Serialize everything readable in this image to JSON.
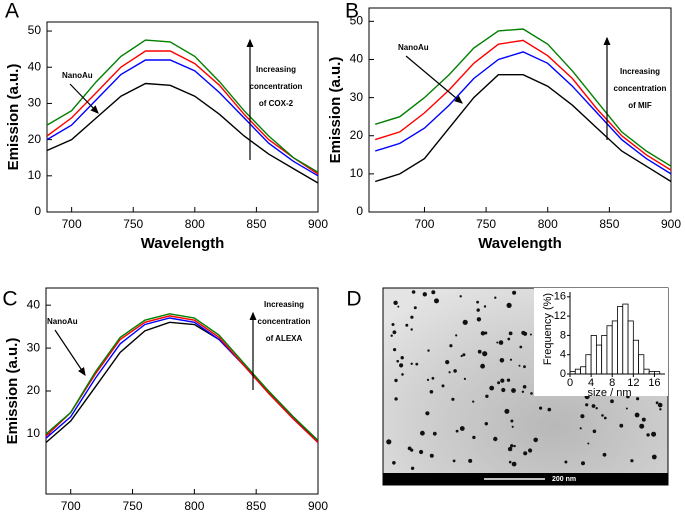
{
  "chart_data": [
    {
      "type": "line",
      "panel_label": "A",
      "xlabel": "Wavelength",
      "ylabel": "Emission (a.u.)",
      "annotation": "NanoAu",
      "annotation_lines": [
        "Increasing",
        "concentration",
        "of COX-2"
      ],
      "x": [
        680,
        700,
        720,
        740,
        760,
        780,
        800,
        820,
        840,
        860,
        880,
        900
      ],
      "xlim": [
        680,
        900
      ],
      "xticks": [
        700,
        750,
        800,
        850,
        900
      ],
      "ylim": [
        0,
        52.5
      ],
      "yticks": [
        0,
        10,
        20,
        30,
        40,
        50
      ],
      "series": [
        {
          "color": "#000000",
          "values": [
            17,
            20,
            26,
            32,
            35.5,
            35,
            32,
            27,
            21,
            16,
            12,
            8
          ]
        },
        {
          "color": "#0000ff",
          "values": [
            20,
            24,
            31,
            38,
            42,
            42,
            39,
            33,
            26,
            19,
            14,
            10
          ]
        },
        {
          "color": "#ff0000",
          "values": [
            21,
            26,
            33,
            40,
            44.5,
            44.5,
            41,
            35,
            27,
            20,
            15,
            10.5
          ]
        },
        {
          "color": "#007f00",
          "values": [
            24,
            28,
            36,
            43,
            47.5,
            47,
            43,
            36,
            28,
            21,
            15,
            11
          ]
        }
      ]
    },
    {
      "type": "line",
      "panel_label": "B",
      "xlabel": "Wavelength",
      "ylabel": "Emission (a.u.)",
      "annotation": "NanoAu",
      "annotation_lines": [
        "Increasing",
        "concentration",
        "of MIF"
      ],
      "x": [
        660,
        680,
        700,
        720,
        740,
        760,
        780,
        800,
        820,
        840,
        860,
        880,
        900
      ],
      "xlim": [
        655,
        900
      ],
      "xticks": [
        700,
        750,
        800,
        850,
        900
      ],
      "ylim": [
        0,
        53.5
      ],
      "yticks": [
        0,
        10,
        20,
        30,
        40,
        50
      ],
      "series": [
        {
          "color": "#000000",
          "values": [
            8,
            10,
            14,
            22,
            30,
            36,
            36,
            33,
            28,
            22,
            16,
            12,
            8
          ]
        },
        {
          "color": "#0000ff",
          "values": [
            16,
            18,
            22,
            28,
            35,
            40,
            42,
            39,
            33,
            26,
            19,
            14,
            10
          ]
        },
        {
          "color": "#ff0000",
          "values": [
            19,
            21,
            26,
            32,
            39,
            44,
            45,
            41,
            35,
            27,
            20,
            15,
            11
          ]
        },
        {
          "color": "#007f00",
          "values": [
            23,
            25,
            30,
            36,
            43,
            47.5,
            48,
            44,
            37,
            29,
            21,
            16,
            12
          ]
        }
      ]
    },
    {
      "type": "line",
      "panel_label": "C",
      "xlabel": "Wavelength",
      "ylabel": "Emission (a.u.)",
      "annotation": "NanoAu",
      "annotation_lines": [
        "Increasing",
        "concentration",
        "of ALEXA"
      ],
      "x": [
        680,
        700,
        720,
        740,
        760,
        780,
        800,
        820,
        840,
        860,
        880,
        900
      ],
      "xlim": [
        680,
        900
      ],
      "xticks": [
        700,
        750,
        800,
        850,
        900
      ],
      "ylim": [
        -4,
        44
      ],
      "yticks": [
        10,
        20,
        30,
        40
      ],
      "series": [
        {
          "color": "#000000",
          "values": [
            8,
            13,
            21,
            29,
            34,
            36,
            35.5,
            32,
            26,
            20,
            14,
            8
          ]
        },
        {
          "color": "#0000ff",
          "values": [
            9,
            14,
            23,
            31,
            35.5,
            37,
            36,
            32,
            26,
            19.5,
            13.5,
            8
          ]
        },
        {
          "color": "#ff0000",
          "values": [
            9.5,
            15,
            24,
            32,
            36,
            37.5,
            36.5,
            32.5,
            26,
            19.5,
            13.5,
            8
          ]
        },
        {
          "color": "#007f00",
          "values": [
            10,
            15,
            24.5,
            32.5,
            36.5,
            38,
            37,
            33,
            26.5,
            20,
            14,
            8.5
          ]
        }
      ]
    },
    {
      "type": "histogram",
      "panel_label": "D",
      "scale_bar": "200 nm",
      "xlabel": "size / nm",
      "ylabel": "Frequency (%)",
      "bins": [
        0,
        1,
        2,
        3,
        4,
        5,
        6,
        7,
        8,
        9,
        10,
        11,
        12,
        13,
        14,
        15,
        16,
        17
      ],
      "values": [
        0.5,
        1,
        1.5,
        4,
        8,
        6,
        8,
        10,
        11,
        14,
        14.5,
        11,
        7,
        4,
        1,
        0.5,
        0.5
      ],
      "color": "#ffffff",
      "xlim": [
        0,
        18
      ],
      "xticks": [
        0,
        4,
        8,
        12,
        16
      ],
      "ylim": [
        0,
        17
      ],
      "yticks": [
        0,
        4,
        8,
        12,
        16
      ]
    }
  ]
}
